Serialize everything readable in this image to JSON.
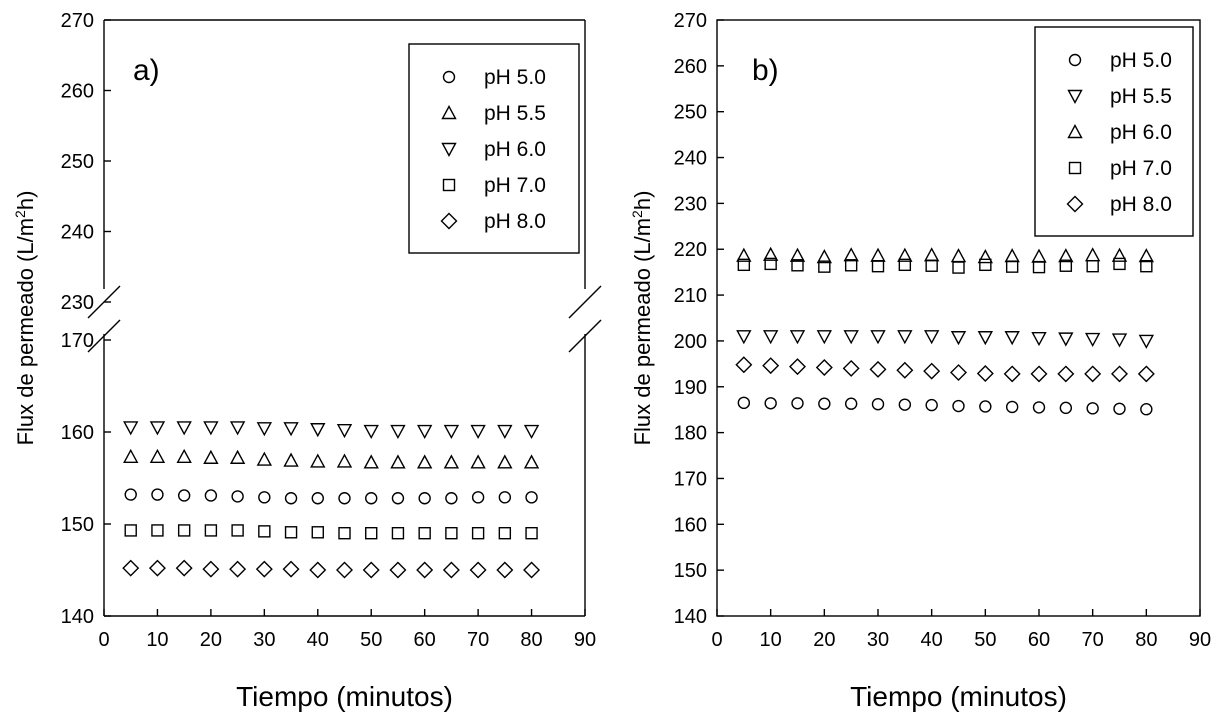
{
  "chart_data": [
    {
      "type": "scatter",
      "panel_label": "a)",
      "xlabel": "Tiempo (minutos)",
      "ylabel_main": "Flux de permeado (L/m",
      "ylabel_sup": "2",
      "ylabel_end": "h)",
      "xlim": [
        0,
        90
      ],
      "xticks": [
        "0",
        "10",
        "20",
        "30",
        "40",
        "50",
        "60",
        "70",
        "80",
        "90"
      ],
      "y_break": {
        "lower": [
          140,
          170
        ],
        "upper": [
          230,
          270
        ]
      },
      "yticks": [
        "140",
        "150",
        "160",
        "170",
        "230",
        "240",
        "250",
        "260",
        "270"
      ],
      "grid": false,
      "legend_position": "top-right",
      "x": [
        5,
        10,
        15,
        20,
        25,
        30,
        35,
        40,
        45,
        50,
        55,
        60,
        65,
        70,
        75,
        80
      ],
      "series": [
        {
          "name": "pH 5.0",
          "marker": "circle",
          "values": [
            153.2,
            153.2,
            153.1,
            153.1,
            153.0,
            152.9,
            152.8,
            152.8,
            152.8,
            152.8,
            152.8,
            152.8,
            152.8,
            152.9,
            152.9,
            152.9
          ]
        },
        {
          "name": "pH 5.5",
          "marker": "triangle-up",
          "values": [
            157.3,
            157.3,
            157.3,
            157.2,
            157.2,
            157.0,
            156.9,
            156.8,
            156.8,
            156.7,
            156.7,
            156.7,
            156.7,
            156.7,
            156.7,
            156.7
          ]
        },
        {
          "name": "pH 6.0",
          "marker": "triangle-down",
          "values": [
            160.5,
            160.5,
            160.5,
            160.5,
            160.5,
            160.4,
            160.4,
            160.3,
            160.2,
            160.1,
            160.1,
            160.1,
            160.1,
            160.1,
            160.1,
            160.1
          ]
        },
        {
          "name": "pH 7.0",
          "marker": "square",
          "values": [
            149.3,
            149.3,
            149.3,
            149.3,
            149.3,
            149.2,
            149.1,
            149.1,
            149.0,
            149.0,
            149.0,
            149.0,
            149.0,
            149.0,
            149.0,
            149.0
          ]
        },
        {
          "name": "pH 8.0",
          "marker": "diamond",
          "values": [
            145.2,
            145.2,
            145.2,
            145.1,
            145.1,
            145.1,
            145.1,
            145.0,
            145.0,
            145.0,
            145.0,
            145.0,
            145.0,
            145.0,
            145.0,
            145.0
          ]
        }
      ]
    },
    {
      "type": "scatter",
      "panel_label": "b)",
      "xlabel": "Tiempo (minutos)",
      "ylabel_main": "Flux de permeado (L/m",
      "ylabel_sup": "2",
      "ylabel_end": "h)",
      "xlim": [
        0,
        90
      ],
      "ylim": [
        140,
        270
      ],
      "xticks": [
        "0",
        "10",
        "20",
        "30",
        "40",
        "50",
        "60",
        "70",
        "80",
        "90"
      ],
      "yticks": [
        "140",
        "150",
        "160",
        "170",
        "180",
        "190",
        "200",
        "210",
        "220",
        "230",
        "240",
        "250",
        "260",
        "270"
      ],
      "grid": false,
      "legend_position": "top-right",
      "x": [
        5,
        10,
        15,
        20,
        25,
        30,
        35,
        40,
        45,
        50,
        55,
        60,
        65,
        70,
        75,
        80
      ],
      "series": [
        {
          "name": "pH 5.0",
          "marker": "circle",
          "values": [
            186.5,
            186.4,
            186.4,
            186.3,
            186.3,
            186.2,
            186.1,
            186.0,
            185.8,
            185.7,
            185.6,
            185.5,
            185.4,
            185.3,
            185.2,
            185.1
          ]
        },
        {
          "name": "pH 5.5",
          "marker": "triangle-down",
          "values": [
            201.0,
            201.0,
            201.0,
            201.0,
            201.0,
            201.0,
            201.0,
            201.0,
            200.8,
            200.8,
            200.8,
            200.6,
            200.5,
            200.4,
            200.3,
            200.0
          ]
        },
        {
          "name": "pH 6.0",
          "marker": "triangle-up",
          "values": [
            218.6,
            218.8,
            218.6,
            218.3,
            218.7,
            218.6,
            218.6,
            218.7,
            218.5,
            218.3,
            218.5,
            218.4,
            218.5,
            218.7,
            218.6,
            218.5
          ]
        },
        {
          "name": "pH 7.0",
          "marker": "square",
          "values": [
            216.6,
            216.8,
            216.5,
            216.2,
            216.5,
            216.3,
            216.6,
            216.4,
            216.0,
            216.6,
            216.2,
            216.1,
            216.4,
            216.3,
            216.8,
            216.3
          ]
        },
        {
          "name": "pH 8.0",
          "marker": "diamond",
          "values": [
            194.8,
            194.6,
            194.4,
            194.2,
            194.0,
            193.8,
            193.6,
            193.4,
            193.1,
            192.9,
            192.8,
            192.8,
            192.8,
            192.8,
            192.8,
            192.8
          ]
        }
      ]
    }
  ]
}
